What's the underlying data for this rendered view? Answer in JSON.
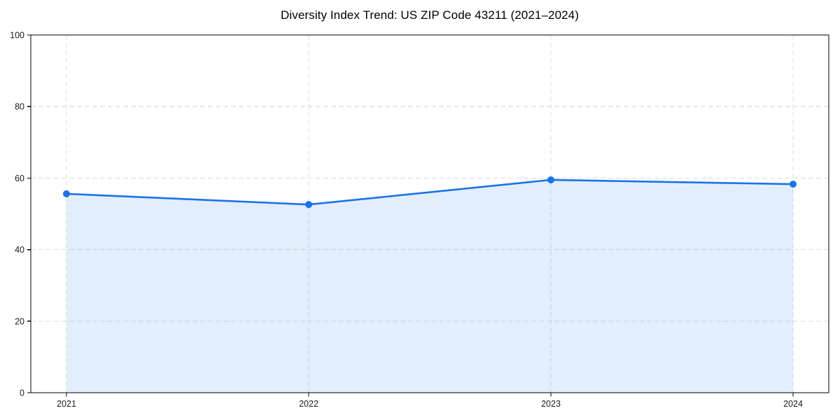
{
  "chart_data": {
    "type": "area",
    "title": "Diversity Index Trend: US ZIP Code 43211 (2021–2024)",
    "x": [
      "2021",
      "2022",
      "2023",
      "2024"
    ],
    "series": [
      {
        "name": "Diversity Index",
        "values": [
          55.6,
          52.6,
          59.5,
          58.3
        ]
      }
    ],
    "xlabel": "",
    "ylabel": "",
    "ylim": [
      0,
      100
    ],
    "yticks": [
      0,
      20,
      40,
      60,
      80,
      100
    ],
    "grid": true,
    "grid_style": "dashed",
    "legend_position": "none",
    "colors": {
      "line": "#1a73e8",
      "marker": "#1a73e8",
      "fill": "rgba(26,115,232,0.12)",
      "grid": "#dcdcdc",
      "axis": "#000000",
      "tick_text": "#1a1a1a"
    }
  }
}
